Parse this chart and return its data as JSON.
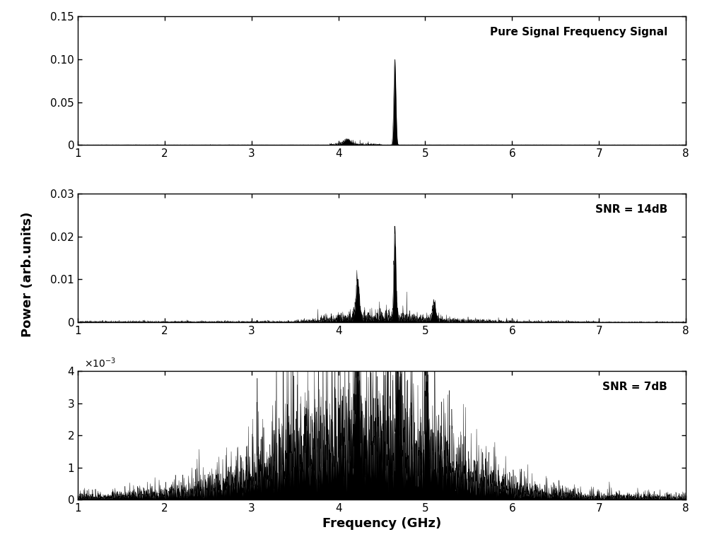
{
  "xlabel": "Frequency (GHz)",
  "ylabel": "Power (arb.units)",
  "xlim": [
    1,
    8
  ],
  "xticks": [
    1,
    2,
    3,
    4,
    5,
    6,
    7,
    8
  ],
  "subplot1": {
    "label": "Pure Signal Frequency Signal",
    "ylim": [
      0,
      0.15
    ],
    "yticks": [
      0,
      0.05,
      0.1,
      0.15
    ],
    "ytick_labels": [
      "0",
      "0.05",
      "0.10",
      "0.15"
    ]
  },
  "subplot2": {
    "label": "SNR = 14dB",
    "ylim": [
      0,
      0.03
    ],
    "yticks": [
      0,
      0.01,
      0.02,
      0.03
    ],
    "ytick_labels": [
      "0",
      "0.01",
      "0.02",
      "0.03"
    ]
  },
  "subplot3": {
    "label": "SNR = 7dB",
    "ylim": [
      0,
      0.004
    ],
    "yticks": [
      0,
      0.001,
      0.002,
      0.003,
      0.004
    ],
    "ytick_labels": [
      "0",
      "1",
      "2",
      "3",
      "4"
    ]
  },
  "background_color": "#ffffff",
  "signal_color": "#000000",
  "fig_width": 10.0,
  "fig_height": 7.77,
  "dpi": 100
}
